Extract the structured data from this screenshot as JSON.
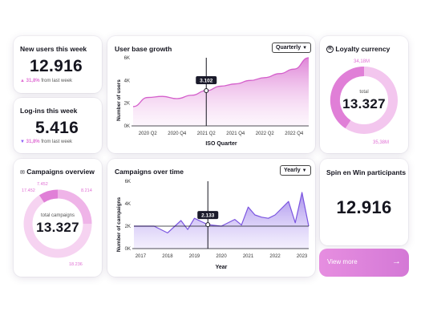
{
  "new_users": {
    "title": "New users this week",
    "value": "12.916",
    "change": "31,8%",
    "change_suffix": "from last week",
    "direction": "up"
  },
  "logins": {
    "title": "Log-ins this week",
    "value": "5.416",
    "change": "31,8%",
    "change_suffix": "from last week",
    "direction": "down"
  },
  "user_growth": {
    "title": "User base growth",
    "dropdown": "Quarterly",
    "tooltip": "3.102",
    "y_ticks": [
      "6K",
      "4K",
      "2K",
      "0K"
    ],
    "x_ticks": [
      "2020 Q2",
      "2020 Q4",
      "2021 Q2",
      "2021 Q4",
      "2022 Q2",
      "2022 Q4"
    ]
  },
  "loyalty": {
    "title": "Loyalty currency",
    "total_label": "total",
    "value": "13.327",
    "segments": [
      "34,18M",
      "35,38M"
    ]
  },
  "campaigns": {
    "title": "Campaigns overview",
    "total_label": "total campaigns",
    "value": "13.327",
    "labels": [
      "17.452",
      "7.452",
      "8.214",
      "18.236"
    ]
  },
  "campaigns_time": {
    "title": "Campaigns over time",
    "dropdown": "Yearly",
    "tooltip": "2.133",
    "y_ticks": [
      "6K",
      "4K",
      "2K",
      "0K"
    ],
    "x_ticks": [
      "2017",
      "2018",
      "2019",
      "2020",
      "2021",
      "2022",
      "2023"
    ]
  },
  "spin": {
    "title": "Spin en Win participants",
    "value": "12.916"
  },
  "view_more": {
    "label": "View more",
    "arrow": "→"
  },
  "chart_data": [
    {
      "type": "area",
      "title": "User base growth",
      "xlabel": "ISO Quarter",
      "ylabel": "Number of users",
      "x": [
        "2020 Q1",
        "2020 Q2",
        "2020 Q3",
        "2020 Q4",
        "2021 Q1",
        "2021 Q2",
        "2021 Q3",
        "2021 Q4",
        "2022 Q1",
        "2022 Q2",
        "2022 Q3",
        "2022 Q4",
        "2023 Q1"
      ],
      "values": [
        1700,
        2500,
        2600,
        2400,
        2700,
        3102,
        3500,
        3700,
        4000,
        4250,
        4600,
        5000,
        6000
      ],
      "ylim": [
        0,
        6000
      ],
      "grid": false
    },
    {
      "type": "area",
      "title": "Campaigns over time",
      "xlabel": "Year",
      "ylabel": "Number of campaigns",
      "x": [
        2016.75,
        2017,
        2017.5,
        2018,
        2018.5,
        2018.75,
        2019,
        2019.5,
        2020,
        2020.5,
        2020.75,
        2021,
        2021.25,
        2021.5,
        2021.75,
        2022,
        2022.5,
        2022.75,
        2023,
        2023.25
      ],
      "values": [
        2000,
        2000,
        2000,
        1400,
        2500,
        1700,
        2700,
        2133,
        2000,
        2600,
        2100,
        3700,
        3000,
        2800,
        2700,
        3000,
        4200,
        2300,
        5000,
        2000
      ],
      "ylim": [
        0,
        6000
      ],
      "reference_line": 2000,
      "grid": false
    }
  ]
}
